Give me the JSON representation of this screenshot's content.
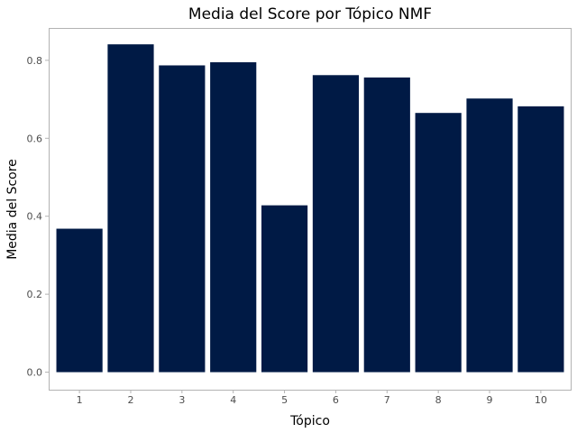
{
  "chart_data": {
    "type": "bar",
    "title": "Media del Score por Tópico NMF",
    "xlabel": "Tópico",
    "ylabel": "Media del Score",
    "categories": [
      "1",
      "2",
      "3",
      "4",
      "5",
      "6",
      "7",
      "8",
      "9",
      "10"
    ],
    "values": [
      0.368,
      0.841,
      0.787,
      0.795,
      0.428,
      0.762,
      0.756,
      0.665,
      0.702,
      0.682
    ],
    "ylim": [
      -0.045,
      0.883
    ],
    "yticks": [
      0.0,
      0.2,
      0.4,
      0.6,
      0.8
    ],
    "ytick_labels": [
      "0.0",
      "0.2",
      "0.4",
      "0.6",
      "0.8"
    ],
    "grid": false,
    "bar_color": "#001a45",
    "panel_border_color": "#b3b3b3",
    "tick_label_color": "#4d4d4d"
  }
}
